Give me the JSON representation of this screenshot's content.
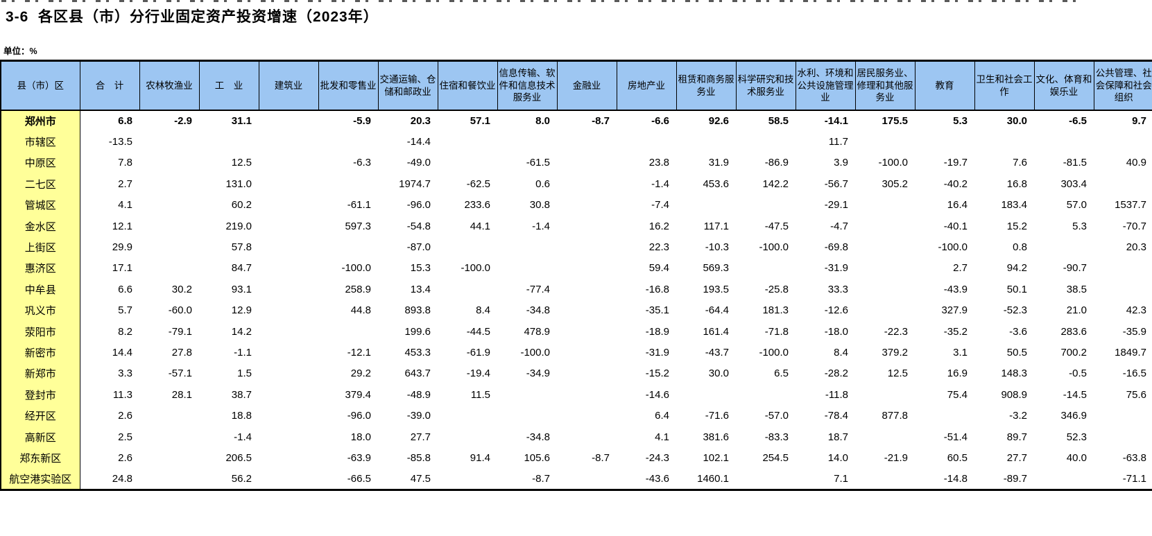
{
  "page": {
    "title": "3-6  各区县（市）分行业固定资产投资增速（2023年）",
    "unit_label": "单位：%"
  },
  "colors": {
    "header_bg": "#9DC6F2",
    "row_label_bg": "#FFFF99",
    "border": "#000000"
  },
  "table": {
    "corner_header": "县（市）区",
    "columns": [
      "合　计",
      "农林牧渔业",
      "工　业",
      "建筑业",
      "批发和零售业",
      "交通运输、仓储和邮政业",
      "住宿和餐饮业",
      "信息传输、软件和信息技术服务业",
      "金融业",
      "房地产业",
      "租赁和商务服务业",
      "科学研究和技术服务业",
      "水利、环境和公共设施管理业",
      "居民服务业、修理和其他服务业",
      "教育",
      "卫生和社会工作",
      "文化、体育和娱乐业",
      "公共管理、社会保障和社会组织"
    ],
    "rows": [
      {
        "region": "郑州市",
        "bold": true,
        "values": [
          "6.8",
          "-2.9",
          "31.1",
          "",
          "-5.9",
          "20.3",
          "57.1",
          "8.0",
          "-8.7",
          "-6.6",
          "92.6",
          "58.5",
          "-14.1",
          "175.5",
          "5.3",
          "30.0",
          "-6.5",
          "9.7"
        ]
      },
      {
        "region": "市辖区",
        "bold": false,
        "values": [
          "-13.5",
          "",
          "",
          "",
          "",
          "-14.4",
          "",
          "",
          "",
          "",
          "",
          "",
          "11.7",
          "",
          "",
          "",
          "",
          ""
        ]
      },
      {
        "region": "中原区",
        "bold": false,
        "values": [
          "7.8",
          "",
          "12.5",
          "",
          "-6.3",
          "-49.0",
          "",
          "-61.5",
          "",
          "23.8",
          "31.9",
          "-86.9",
          "3.9",
          "-100.0",
          "-19.7",
          "7.6",
          "-81.5",
          "40.9"
        ]
      },
      {
        "region": "二七区",
        "bold": false,
        "values": [
          "2.7",
          "",
          "131.0",
          "",
          "",
          "1974.7",
          "-62.5",
          "0.6",
          "",
          "-1.4",
          "453.6",
          "142.2",
          "-56.7",
          "305.2",
          "-40.2",
          "16.8",
          "303.4",
          ""
        ]
      },
      {
        "region": "管城区",
        "bold": false,
        "values": [
          "4.1",
          "",
          "60.2",
          "",
          "-61.1",
          "-96.0",
          "233.6",
          "30.8",
          "",
          "-7.4",
          "",
          "",
          "-29.1",
          "",
          "16.4",
          "183.4",
          "57.0",
          "1537.7"
        ]
      },
      {
        "region": "金水区",
        "bold": false,
        "values": [
          "12.1",
          "",
          "219.0",
          "",
          "597.3",
          "-54.8",
          "44.1",
          "-1.4",
          "",
          "16.2",
          "117.1",
          "-47.5",
          "-4.7",
          "",
          "-40.1",
          "15.2",
          "5.3",
          "-70.7"
        ]
      },
      {
        "region": "上街区",
        "bold": false,
        "values": [
          "29.9",
          "",
          "57.8",
          "",
          "",
          "-87.0",
          "",
          "",
          "",
          "22.3",
          "-10.3",
          "-100.0",
          "-69.8",
          "",
          "-100.0",
          "0.8",
          "",
          "20.3"
        ]
      },
      {
        "region": "惠济区",
        "bold": false,
        "values": [
          "17.1",
          "",
          "84.7",
          "",
          "-100.0",
          "15.3",
          "-100.0",
          "",
          "",
          "59.4",
          "569.3",
          "",
          "-31.9",
          "",
          "2.7",
          "94.2",
          "-90.7",
          ""
        ]
      },
      {
        "region": "中牟县",
        "bold": false,
        "values": [
          "6.6",
          "30.2",
          "93.1",
          "",
          "258.9",
          "13.4",
          "",
          "-77.4",
          "",
          "-16.8",
          "193.5",
          "-25.8",
          "33.3",
          "",
          "-43.9",
          "50.1",
          "38.5",
          ""
        ]
      },
      {
        "region": "巩义市",
        "bold": false,
        "values": [
          "5.7",
          "-60.0",
          "12.9",
          "",
          "44.8",
          "893.8",
          "8.4",
          "-34.8",
          "",
          "-35.1",
          "-64.4",
          "181.3",
          "-12.6",
          "",
          "327.9",
          "-52.3",
          "21.0",
          "42.3"
        ]
      },
      {
        "region": "荥阳市",
        "bold": false,
        "values": [
          "8.2",
          "-79.1",
          "14.2",
          "",
          "",
          "199.6",
          "-44.5",
          "478.9",
          "",
          "-18.9",
          "161.4",
          "-71.8",
          "-18.0",
          "-22.3",
          "-35.2",
          "-3.6",
          "283.6",
          "-35.9"
        ]
      },
      {
        "region": "新密市",
        "bold": false,
        "values": [
          "14.4",
          "27.8",
          "-1.1",
          "",
          "-12.1",
          "453.3",
          "-61.9",
          "-100.0",
          "",
          "-31.9",
          "-43.7",
          "-100.0",
          "8.4",
          "379.2",
          "3.1",
          "50.5",
          "700.2",
          "1849.7"
        ]
      },
      {
        "region": "新郑市",
        "bold": false,
        "values": [
          "3.3",
          "-57.1",
          "1.5",
          "",
          "29.2",
          "643.7",
          "-19.4",
          "-34.9",
          "",
          "-15.2",
          "30.0",
          "6.5",
          "-28.2",
          "12.5",
          "16.9",
          "148.3",
          "-0.5",
          "-16.5"
        ]
      },
      {
        "region": "登封市",
        "bold": false,
        "values": [
          "11.3",
          "28.1",
          "38.7",
          "",
          "379.4",
          "-48.9",
          "11.5",
          "",
          "",
          "-14.6",
          "",
          "",
          "-11.8",
          "",
          "75.4",
          "908.9",
          "-14.5",
          "75.6"
        ]
      },
      {
        "region": "经开区",
        "bold": false,
        "values": [
          "2.6",
          "",
          "18.8",
          "",
          "-96.0",
          "-39.0",
          "",
          "",
          "",
          "6.4",
          "-71.6",
          "-57.0",
          "-78.4",
          "877.8",
          "",
          "-3.2",
          "346.9",
          ""
        ]
      },
      {
        "region": "高新区",
        "bold": false,
        "values": [
          "2.5",
          "",
          "-1.4",
          "",
          "18.0",
          "27.7",
          "",
          "-34.8",
          "",
          "4.1",
          "381.6",
          "-83.3",
          "18.7",
          "",
          "-51.4",
          "89.7",
          "52.3",
          ""
        ]
      },
      {
        "region": "郑东新区",
        "bold": false,
        "values": [
          "2.6",
          "",
          "206.5",
          "",
          "-63.9",
          "-85.8",
          "91.4",
          "105.6",
          "-8.7",
          "-24.3",
          "102.1",
          "254.5",
          "14.0",
          "-21.9",
          "60.5",
          "27.7",
          "40.0",
          "-63.8"
        ]
      },
      {
        "region": "航空港实验区",
        "bold": false,
        "values": [
          "24.8",
          "",
          "56.2",
          "",
          "-66.5",
          "47.5",
          "",
          "-8.7",
          "",
          "-43.6",
          "1460.1",
          "",
          "7.1",
          "",
          "-14.8",
          "-89.7",
          "",
          "-71.1"
        ]
      }
    ]
  }
}
